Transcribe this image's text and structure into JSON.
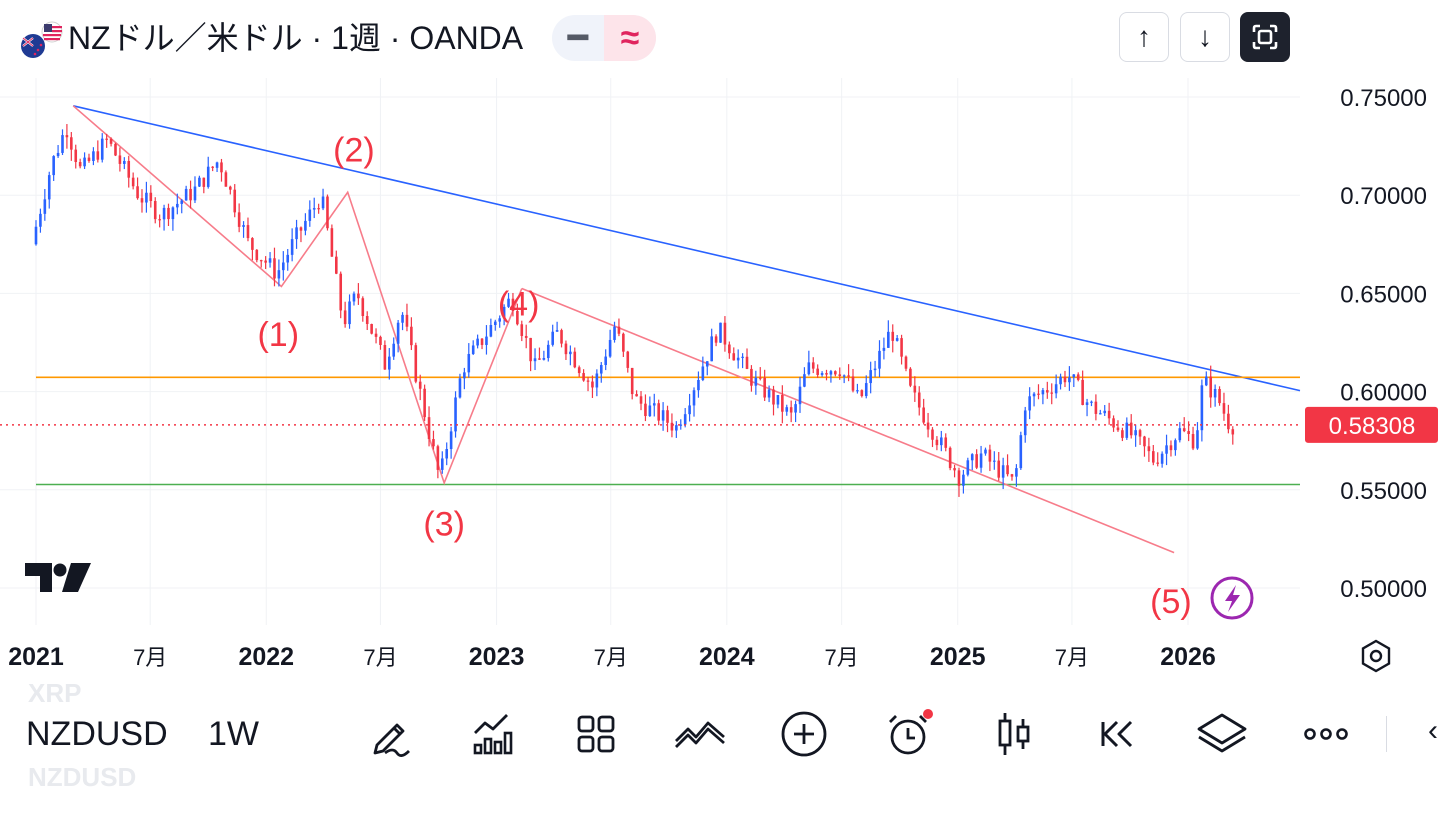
{
  "header": {
    "title": "NZドル／米ドル · 1週 · OANDA",
    "minus_label": "━",
    "wave_label": "≈",
    "up_icon": "↑",
    "down_icon": "↓"
  },
  "chart_data": {
    "type": "candlestick",
    "ylim": [
      0.482,
      0.776
    ],
    "yticks": [
      "0.75000",
      "0.70000",
      "0.65000",
      "0.60000",
      "0.55000",
      "0.50000"
    ],
    "ytick_values": [
      0.75,
      0.7,
      0.65,
      0.6,
      0.55,
      0.5
    ],
    "xlim": [
      "2021-01-01",
      "2026-07-01"
    ],
    "xticks": [
      "2021",
      "7月",
      "2022",
      "7月",
      "2023",
      "7月",
      "2024",
      "7月",
      "2025",
      "7月",
      "2026"
    ],
    "xtick_dates": [
      "2021-01-01",
      "2021-07-01",
      "2022-01-01",
      "2022-07-01",
      "2023-01-01",
      "2023-07-01",
      "2024-01-01",
      "2024-07-01",
      "2025-01-01",
      "2025-07-01",
      "2026-01-01"
    ],
    "last_price": "0.58308",
    "colors": {
      "up": "#2962ff",
      "down": "#f23645",
      "price_tag": "#f23645"
    },
    "price_path": [
      [
        "2021-01-01",
        0.675
      ],
      [
        "2021-02-01",
        0.715
      ],
      [
        "2021-02-25",
        0.735
      ],
      [
        "2021-03-20",
        0.712
      ],
      [
        "2021-05-01",
        0.728
      ],
      [
        "2021-06-20",
        0.7
      ],
      [
        "2021-07-25",
        0.69
      ],
      [
        "2021-09-15",
        0.702
      ],
      [
        "2021-10-25",
        0.718
      ],
      [
        "2021-12-10",
        0.676
      ],
      [
        "2022-01-25",
        0.66
      ],
      [
        "2022-02-20",
        0.676
      ],
      [
        "2022-04-05",
        0.7
      ],
      [
        "2022-05-10",
        0.635
      ],
      [
        "2022-06-01",
        0.65
      ],
      [
        "2022-07-15",
        0.614
      ],
      [
        "2022-08-10",
        0.642
      ],
      [
        "2022-10-10",
        0.555
      ],
      [
        "2022-11-15",
        0.612
      ],
      [
        "2023-02-01",
        0.648
      ],
      [
        "2023-03-10",
        0.612
      ],
      [
        "2023-04-15",
        0.63
      ],
      [
        "2023-06-10",
        0.602
      ],
      [
        "2023-07-15",
        0.634
      ],
      [
        "2023-08-15",
        0.596
      ],
      [
        "2023-10-20",
        0.582
      ],
      [
        "2023-12-25",
        0.632
      ],
      [
        "2024-02-15",
        0.607
      ],
      [
        "2024-04-20",
        0.587
      ],
      [
        "2024-05-15",
        0.612
      ],
      [
        "2024-07-05",
        0.612
      ],
      [
        "2024-08-05",
        0.595
      ],
      [
        "2024-09-25",
        0.632
      ],
      [
        "2024-10-25",
        0.6
      ],
      [
        "2025-01-10",
        0.557
      ],
      [
        "2025-02-15",
        0.568
      ],
      [
        "2025-04-08",
        0.553
      ],
      [
        "2025-04-25",
        0.594
      ],
      [
        "2025-06-10",
        0.604
      ],
      [
        "2025-07-01",
        0.609
      ],
      [
        "2025-08-05",
        0.593
      ],
      [
        "2025-10-10",
        0.578
      ],
      [
        "2025-11-15",
        0.565
      ],
      [
        "2025-12-25",
        0.58
      ],
      [
        "2026-01-20",
        0.575
      ],
      [
        "2026-02-01",
        0.606
      ],
      [
        "2026-02-25",
        0.596
      ],
      [
        "2026-03-15",
        0.583
      ]
    ],
    "lines": [
      {
        "name": "",
        "color": "#2962ff",
        "points": [
          [
            "2021-03-01",
            0.7455
          ],
          [
            "2026-07-01",
            0.6005
          ]
        ]
      },
      {
        "name": "",
        "color": "#ff9800",
        "points": [
          [
            "2021-01-01",
            0.6073
          ],
          [
            "2026-07-01",
            0.6073
          ]
        ]
      },
      {
        "name": "",
        "color": "#4caf50",
        "points": [
          [
            "2021-01-01",
            0.5527
          ],
          [
            "2026-07-01",
            0.5527
          ]
        ]
      },
      {
        "name": "",
        "color": "#f77c8a",
        "points": [
          [
            "2021-03-01",
            0.7455
          ],
          [
            "2022-01-25",
            0.6535
          ],
          [
            "2022-05-10",
            0.7015
          ],
          [
            "2022-10-10",
            0.5535
          ],
          [
            "2023-02-10",
            0.6525
          ]
        ]
      },
      {
        "name": "",
        "color": "#f77c8a",
        "points": [
          [
            "2023-02-10",
            0.6525
          ],
          [
            "2025-12-10",
            0.518
          ]
        ]
      }
    ],
    "annotations": [
      {
        "text": "(1)",
        "date": "2022-01-20",
        "price": 0.6287,
        "color": "#f23645"
      },
      {
        "text": "(2)",
        "date": "2022-05-20",
        "price": 0.7227,
        "color": "#f23645"
      },
      {
        "text": "(3)",
        "date": "2022-10-10",
        "price": 0.5323,
        "color": "#f23645"
      },
      {
        "text": "(4)",
        "date": "2023-02-05",
        "price": 0.6444,
        "color": "#f23645"
      },
      {
        "text": "(5)",
        "date": "2025-12-05",
        "price": 0.4928,
        "color": "#f23645"
      }
    ]
  },
  "toolbar": {
    "ghost_top": "XRP",
    "symbol": "NZDUSD",
    "ghost_bottom": "NZDUSD",
    "interval": "1W",
    "icons": [
      "pencil-draw-icon",
      "bar-chart-icon",
      "grid-icon",
      "indicator-icon",
      "plus-circle-icon",
      "alarm-icon",
      "candles-icon",
      "replay-icon",
      "layers-icon",
      "more-icon"
    ],
    "back_arrow": "‹"
  }
}
